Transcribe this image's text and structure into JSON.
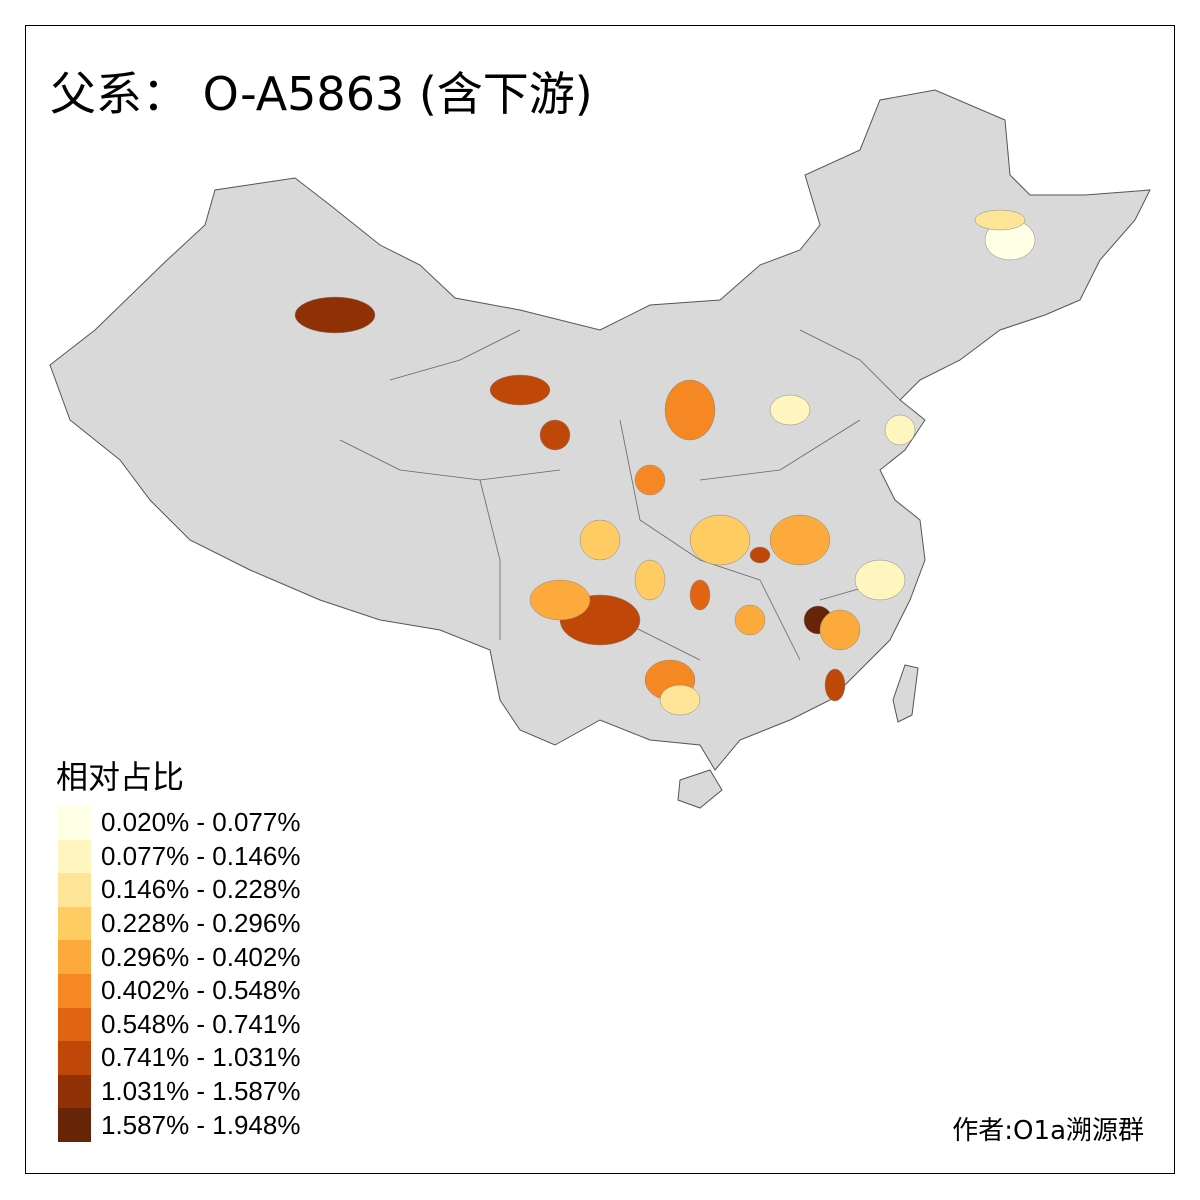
{
  "title": "父系： O-A5863 (含下游)",
  "legend": {
    "title": "相对占比",
    "classes": [
      {
        "label": "0.020% - 0.077%",
        "color": "#FFFFE5"
      },
      {
        "label": "0.077% - 0.146%",
        "color": "#FFF6BF"
      },
      {
        "label": "0.146% - 0.228%",
        "color": "#FEE497"
      },
      {
        "label": "0.228% - 0.296%",
        "color": "#FECC63"
      },
      {
        "label": "0.296% - 0.402%",
        "color": "#FDAA3C"
      },
      {
        "label": "0.402% - 0.548%",
        "color": "#F58823"
      },
      {
        "label": "0.548% - 0.741%",
        "color": "#E06411"
      },
      {
        "label": "0.741% - 1.031%",
        "color": "#BF4707"
      },
      {
        "label": "1.031% - 1.587%",
        "color": "#8F3105"
      },
      {
        "label": "1.587% - 1.948%",
        "color": "#662506"
      }
    ]
  },
  "base_color": "#D9D9D9",
  "credit": "作者:O1a溯源群"
}
